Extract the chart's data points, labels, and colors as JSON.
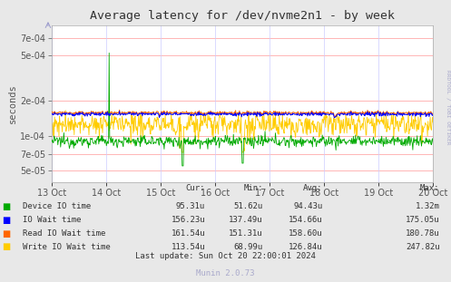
{
  "title": "Average latency for /dev/nvme2n1 - by week",
  "ylabel": "seconds",
  "background_color": "#e8e8e8",
  "plot_bg_color": "#ffffff",
  "grid_color_h": "#ff9999",
  "grid_color_v": "#ccccff",
  "x_tick_labels": [
    "13 Oct",
    "14 Oct",
    "15 Oct",
    "16 Oct",
    "17 Oct",
    "18 Oct",
    "19 Oct",
    "20 Oct"
  ],
  "y_ticks": [
    5e-05,
    7e-05,
    0.0001,
    0.0002,
    0.0005,
    0.0007
  ],
  "ylim_low": 4e-05,
  "ylim_high": 0.0009,
  "legend": [
    {
      "label": "Device IO time",
      "color": "#00aa00"
    },
    {
      "label": "IO Wait time",
      "color": "#0000ff"
    },
    {
      "label": "Read IO Wait time",
      "color": "#ff6600"
    },
    {
      "label": "Write IO Wait time",
      "color": "#ffcc00"
    }
  ],
  "stats_headers": [
    "Cur:",
    "Min:",
    "Avg:",
    "Max:"
  ],
  "stats_rows": [
    [
      "Device IO time",
      "95.31u",
      "51.62u",
      "94.43u",
      "1.32m"
    ],
    [
      "IO Wait time",
      "156.23u",
      "137.49u",
      "154.66u",
      "175.05u"
    ],
    [
      "Read IO Wait time",
      "161.54u",
      "151.31u",
      "158.60u",
      "180.78u"
    ],
    [
      "Write IO Wait time",
      "113.54u",
      "68.99u",
      "126.84u",
      "247.82u"
    ]
  ],
  "last_update": "Last update: Sun Oct 20 22:00:01 2024",
  "rrdtool_text": "RRDTOOL / TOBI OETIKER",
  "munin_text": "Munin 2.0.73"
}
